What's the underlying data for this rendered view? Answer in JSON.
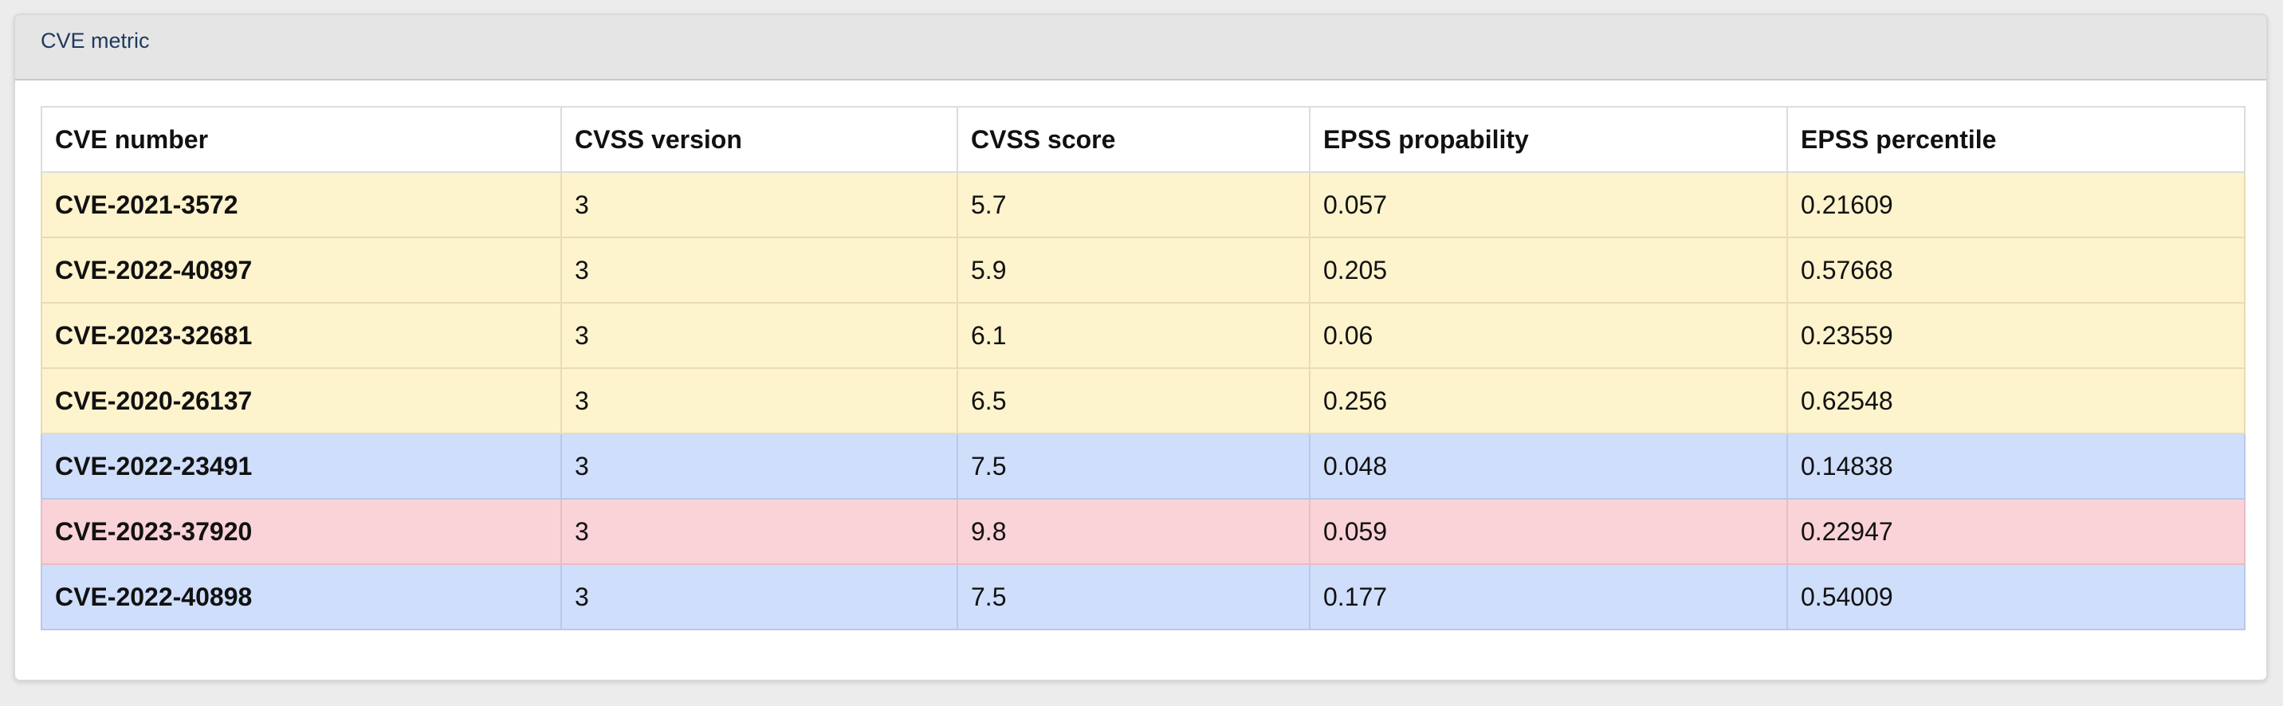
{
  "panel": {
    "title": "CVE metric"
  },
  "table": {
    "columns": [
      "CVE number",
      "CVSS version",
      "CVSS score",
      "EPSS propability",
      "EPSS percentile"
    ],
    "rows": [
      {
        "severity": "medium",
        "cve": "CVE-2021-3572",
        "cvss_version": "3",
        "cvss_score": "5.7",
        "epss_probability": "0.057",
        "epss_percentile": "0.21609"
      },
      {
        "severity": "medium",
        "cve": "CVE-2022-40897",
        "cvss_version": "3",
        "cvss_score": "5.9",
        "epss_probability": "0.205",
        "epss_percentile": "0.57668"
      },
      {
        "severity": "medium",
        "cve": "CVE-2023-32681",
        "cvss_version": "3",
        "cvss_score": "6.1",
        "epss_probability": "0.06",
        "epss_percentile": "0.23559"
      },
      {
        "severity": "medium",
        "cve": "CVE-2020-26137",
        "cvss_version": "3",
        "cvss_score": "6.5",
        "epss_probability": "0.256",
        "epss_percentile": "0.62548"
      },
      {
        "severity": "high",
        "cve": "CVE-2022-23491",
        "cvss_version": "3",
        "cvss_score": "7.5",
        "epss_probability": "0.048",
        "epss_percentile": "0.14838"
      },
      {
        "severity": "critical",
        "cve": "CVE-2023-37920",
        "cvss_version": "3",
        "cvss_score": "9.8",
        "epss_probability": "0.059",
        "epss_percentile": "0.22947"
      },
      {
        "severity": "high",
        "cve": "CVE-2022-40898",
        "cvss_version": "3",
        "cvss_score": "7.5",
        "epss_probability": "0.177",
        "epss_percentile": "0.54009"
      }
    ]
  },
  "colors": {
    "medium_row": "#fdf3cd",
    "high_row": "#cfdefb",
    "critical_row": "#f9d3d8",
    "header_bg": "#e5e5e5",
    "title_text": "#1e3a5f"
  }
}
